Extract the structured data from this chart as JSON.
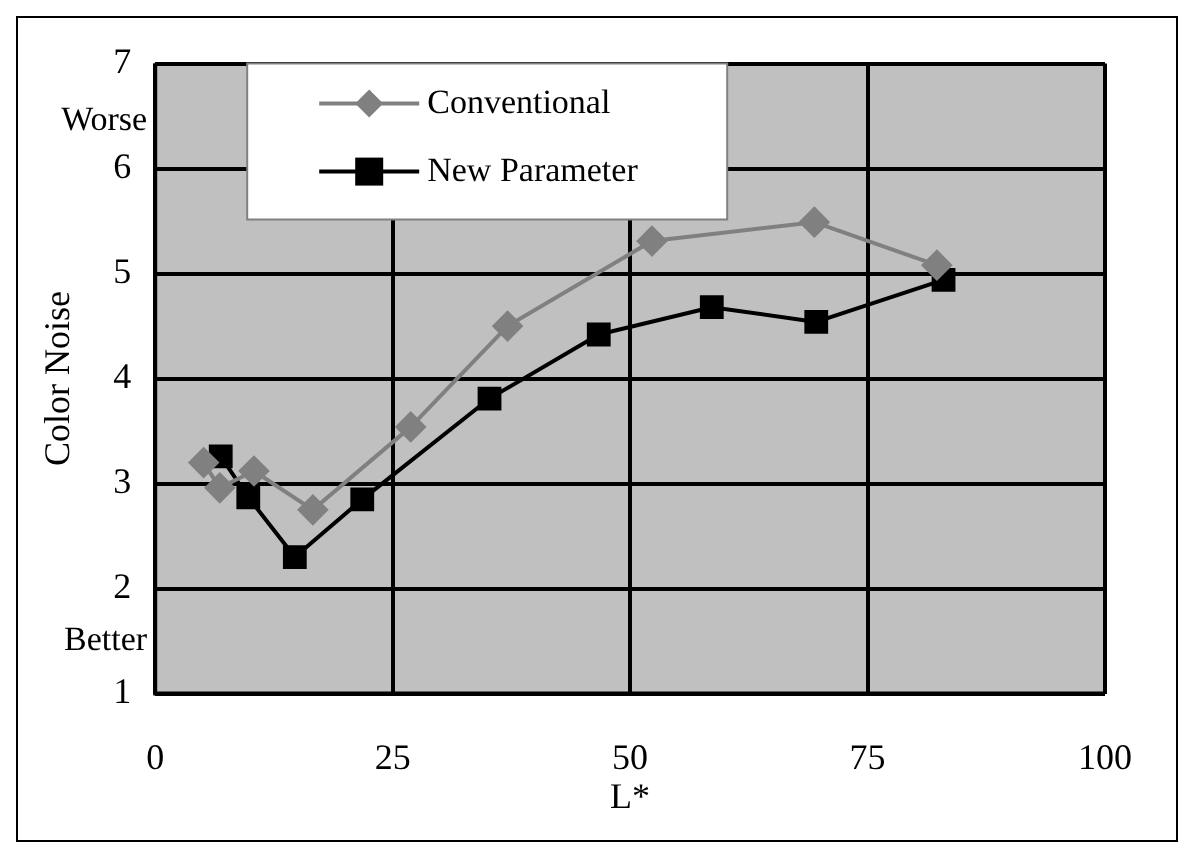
{
  "chart_data": {
    "type": "line",
    "xlabel": "L*",
    "ylabel": "Color Noise",
    "annotations": [
      "Worse",
      "Better"
    ],
    "xlim": [
      0,
      100
    ],
    "xticks": [
      0,
      25,
      50,
      75,
      100
    ],
    "ylim": [
      1,
      7
    ],
    "yticks": [
      1,
      2,
      3,
      4,
      5,
      6,
      7
    ],
    "grid": true,
    "legend": "top",
    "line_style": "solid",
    "series": [
      {
        "name": "Conventional",
        "color": "#808080",
        "marker": "diamond",
        "x": [
          5.1,
          6.8,
          10.4,
          16.6,
          26.9,
          37.1,
          52.3,
          69.4,
          82.3
        ],
        "values": [
          3.2,
          2.96,
          3.12,
          2.75,
          3.54,
          4.5,
          5.31,
          5.49,
          5.08
        ]
      },
      {
        "name": "New Parameter",
        "color": "#000000",
        "marker": "square",
        "x": [
          6.9,
          9.8,
          14.7,
          21.8,
          35.2,
          46.7,
          58.6,
          69.6,
          83.0
        ],
        "values": [
          3.26,
          2.87,
          2.3,
          2.85,
          3.81,
          4.42,
          4.68,
          4.54,
          4.94
        ]
      }
    ]
  }
}
